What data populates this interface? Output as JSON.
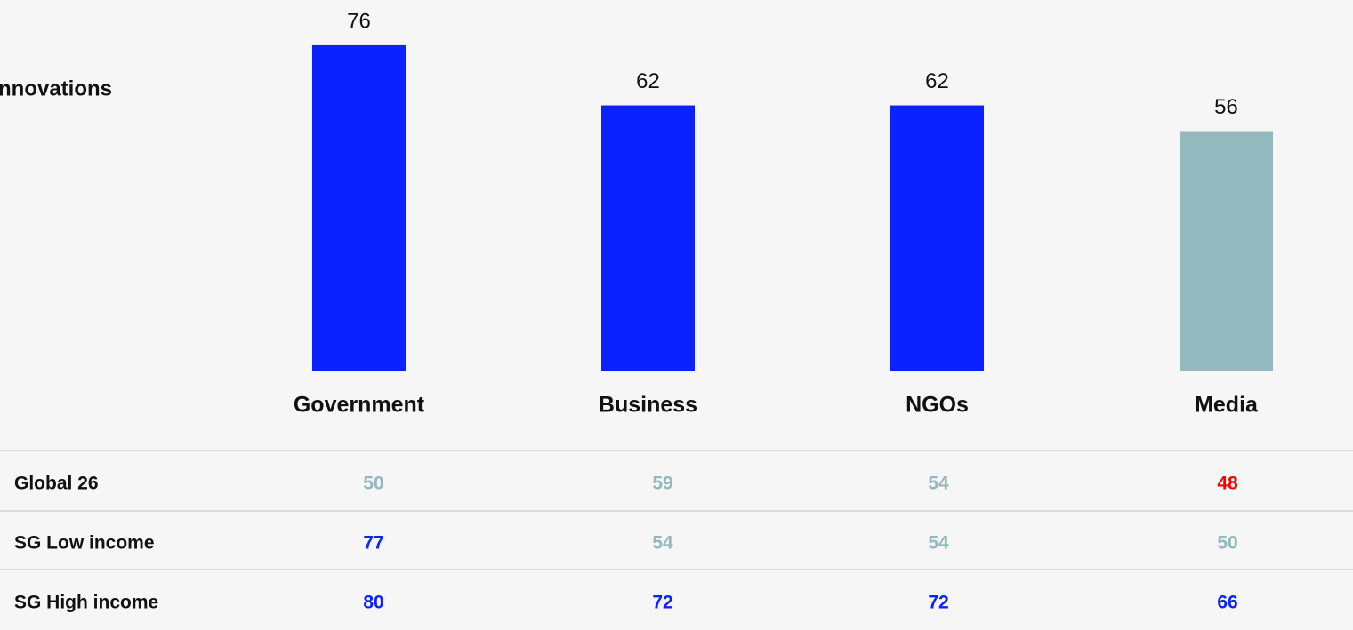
{
  "chart_data": {
    "type": "bar",
    "title": "nnovations",
    "categories": [
      "Government",
      "Business",
      "NGOs",
      "Media"
    ],
    "values": [
      76,
      62,
      62,
      56
    ],
    "colors": [
      "#0a22ff",
      "#0a22ff",
      "#0a22ff",
      "#93b9bf"
    ]
  },
  "table": {
    "rows": [
      {
        "label": "Global 26",
        "values": [
          50,
          59,
          54,
          48
        ],
        "colors": [
          "#93b9bf",
          "#93b9bf",
          "#93b9bf",
          "#ff0000"
        ]
      },
      {
        "label": "SG Low income",
        "values": [
          77,
          54,
          54,
          50
        ],
        "colors": [
          "#0a22ff",
          "#93b9bf",
          "#93b9bf",
          "#93b9bf"
        ]
      },
      {
        "label": "SG High income",
        "values": [
          80,
          72,
          72,
          66
        ],
        "colors": [
          "#0a22ff",
          "#0a22ff",
          "#0a22ff",
          "#0a22ff"
        ]
      }
    ]
  }
}
